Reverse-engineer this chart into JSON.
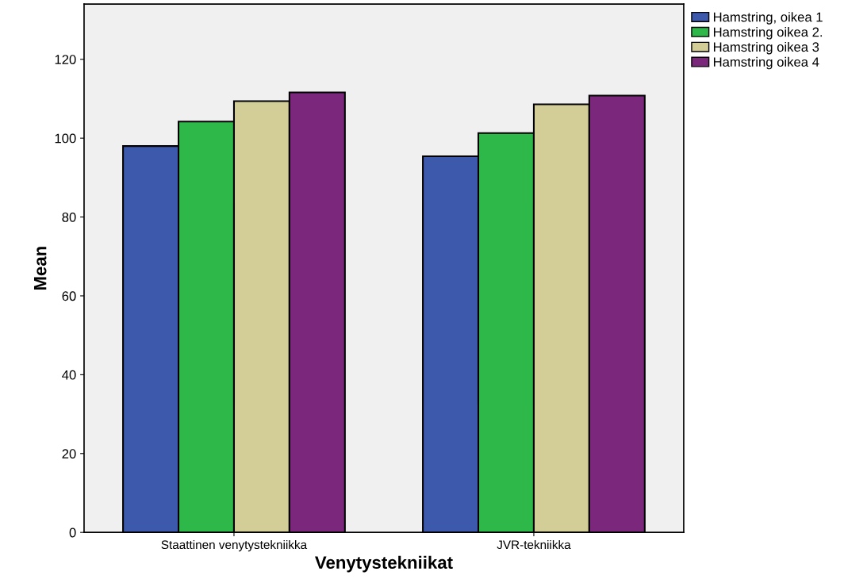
{
  "chart_data": {
    "type": "bar",
    "xlabel": "Venytystekniikat",
    "ylabel": "Mean",
    "categories": [
      "Staattinen venytystekniikka",
      "JVR-tekniikka"
    ],
    "series": [
      {
        "name": "Hamstring, oikea 1",
        "color": "#3d59ab",
        "values": [
          98.0,
          95.4
        ]
      },
      {
        "name": "Hamstring oikea 2.",
        "color": "#2fb84a",
        "values": [
          104.2,
          101.3
        ]
      },
      {
        "name": "Hamstring oikea 3",
        "color": "#d3ce98",
        "values": [
          109.4,
          108.6
        ]
      },
      {
        "name": "Hamstring oikea 4",
        "color": "#7b287c",
        "values": [
          111.6,
          110.8
        ]
      }
    ],
    "ylim": [
      0,
      134
    ],
    "yticks": [
      0,
      20,
      40,
      60,
      80,
      100,
      120
    ],
    "grid": false,
    "legend": "top right"
  }
}
